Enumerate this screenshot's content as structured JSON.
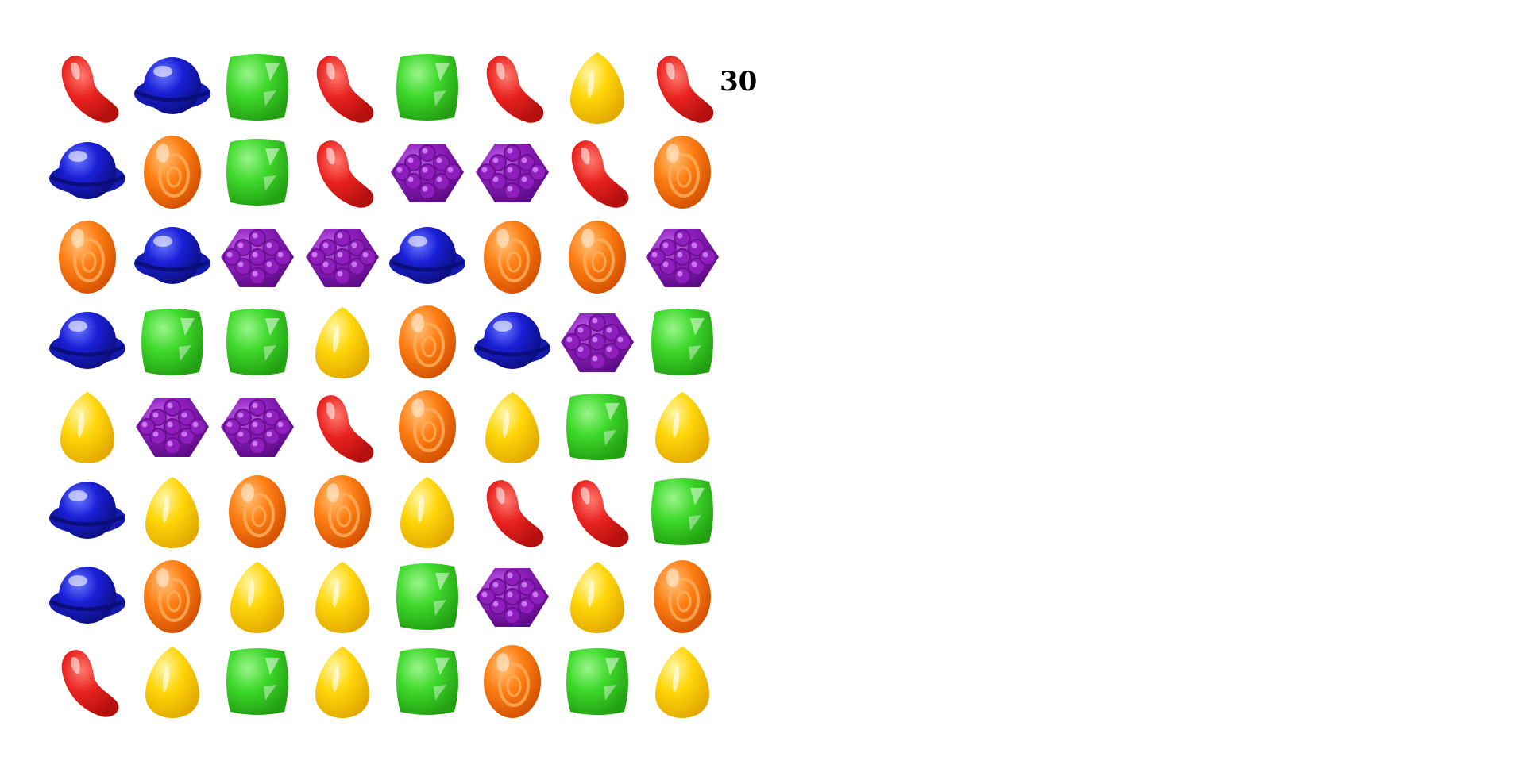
{
  "score": "30",
  "board": {
    "rows": 8,
    "cols": 8,
    "grid": [
      [
        "red-jellybean-candy",
        "blue-lollipop-candy",
        "green-square-candy",
        "red-jellybean-candy",
        "green-square-candy",
        "red-jellybean-candy",
        "yellow-drop-candy",
        "red-jellybean-candy"
      ],
      [
        "blue-lollipop-candy",
        "orange-oval-candy",
        "green-square-candy",
        "red-jellybean-candy",
        "purple-cluster-candy",
        "purple-cluster-candy",
        "red-jellybean-candy",
        "orange-oval-candy"
      ],
      [
        "orange-oval-candy",
        "blue-lollipop-candy",
        "purple-cluster-candy",
        "purple-cluster-candy",
        "blue-lollipop-candy",
        "orange-oval-candy",
        "orange-oval-candy",
        "purple-cluster-candy"
      ],
      [
        "blue-lollipop-candy",
        "green-square-candy",
        "green-square-candy",
        "yellow-drop-candy",
        "orange-oval-candy",
        "blue-lollipop-candy",
        "purple-cluster-candy",
        "green-square-candy"
      ],
      [
        "yellow-drop-candy",
        "purple-cluster-candy",
        "purple-cluster-candy",
        "red-jellybean-candy",
        "orange-oval-candy",
        "yellow-drop-candy",
        "green-square-candy",
        "yellow-drop-candy"
      ],
      [
        "blue-lollipop-candy",
        "yellow-drop-candy",
        "orange-oval-candy",
        "orange-oval-candy",
        "yellow-drop-candy",
        "red-jellybean-candy",
        "red-jellybean-candy",
        "green-square-candy"
      ],
      [
        "blue-lollipop-candy",
        "orange-oval-candy",
        "yellow-drop-candy",
        "yellow-drop-candy",
        "green-square-candy",
        "purple-cluster-candy",
        "yellow-drop-candy",
        "orange-oval-candy"
      ],
      [
        "red-jellybean-candy",
        "yellow-drop-candy",
        "green-square-candy",
        "yellow-drop-candy",
        "green-square-candy",
        "orange-oval-candy",
        "green-square-candy",
        "yellow-drop-candy"
      ]
    ]
  },
  "colors": {
    "red": "#e8221f",
    "blue": "#1a1fd6",
    "green": "#3fd92c",
    "orange": "#ff7f14",
    "purple": "#8e1fbd",
    "yellow": "#ffd60a"
  }
}
